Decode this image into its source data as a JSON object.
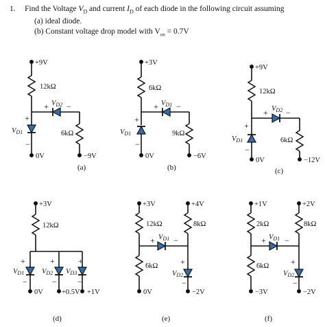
{
  "problem": {
    "number": "1.",
    "text": "Find the Voltage V D and current I D of each diode in the following circuit assuming",
    "line_main_prefix": "Find the Voltage ",
    "v_sym": "V",
    "v_sub": "D",
    "line_main_mid": " and current ",
    "i_sym": "I",
    "i_sub": "D",
    "line_main_suffix": " of each diode in the following circuit assuming",
    "part_a": "(a) ideal diode.",
    "part_b_prefix": "(b) Constant voltage drop model with V",
    "part_b_sub": "on",
    "part_b_suffix": " = 0.7V"
  },
  "circuits": {
    "a": {
      "caption": "(a)",
      "supply": "+9V",
      "r1": "12kΩ",
      "r2": "6kΩ",
      "vd1": "V",
      "vd1_sub": "D1",
      "vd2": "V",
      "vd2_sub": "D2",
      "gnd": "0V",
      "neg": "−9V",
      "plus": "+",
      "minus": "−"
    },
    "b": {
      "caption": "(b)",
      "supply": "+3V",
      "r1": "6kΩ",
      "r2": "9kΩ",
      "vd1": "V",
      "vd1_sub": "D1",
      "vd2": "V",
      "vd2_sub": "D1",
      "gnd": "0V",
      "neg": "−6V",
      "plus": "+",
      "minus": "−"
    },
    "c": {
      "caption": "(c)",
      "supply": "+9V",
      "r1": "12kΩ",
      "r2": "6kΩ",
      "vd1": "V",
      "vd1_sub": "D1",
      "vd2": "V",
      "vd2_sub": "D2",
      "gnd": "0V",
      "neg": "−12V",
      "plus": "+",
      "minus": "−"
    },
    "d": {
      "caption": "(d)",
      "supply": "+3V",
      "r1": "12kΩ",
      "vd1": "V",
      "vd1_sub": "D1",
      "vd2": "V",
      "vd2_sub": "D2",
      "vd3": "V",
      "vd3_sub": "D3",
      "t1": "0V",
      "t2": "+0.5V",
      "t3": "+1V",
      "plus": "+",
      "minus": "−"
    },
    "e": {
      "caption": "(e)",
      "supply1": "+3V",
      "supply2": "+4V",
      "r1": "12kΩ",
      "r2": "8kΩ",
      "r3": "6kΩ",
      "vd1": "V",
      "vd1_sub": "D1",
      "vd2": "V",
      "vd2_sub": "D2",
      "gnd": "0V",
      "neg": "−2V",
      "plus": "+",
      "minus": "−"
    },
    "f": {
      "caption": "(f)",
      "supply1": "+1V",
      "supply2": "+2V",
      "r1": "2kΩ",
      "r2": "8kΩ",
      "r3": "6kΩ",
      "vd1": "V",
      "vd1_sub": "D1",
      "vd2": "V",
      "vd2_sub": "D2",
      "neg1": "−3V",
      "neg2": "−2V",
      "plus": "+",
      "minus": "−"
    }
  }
}
